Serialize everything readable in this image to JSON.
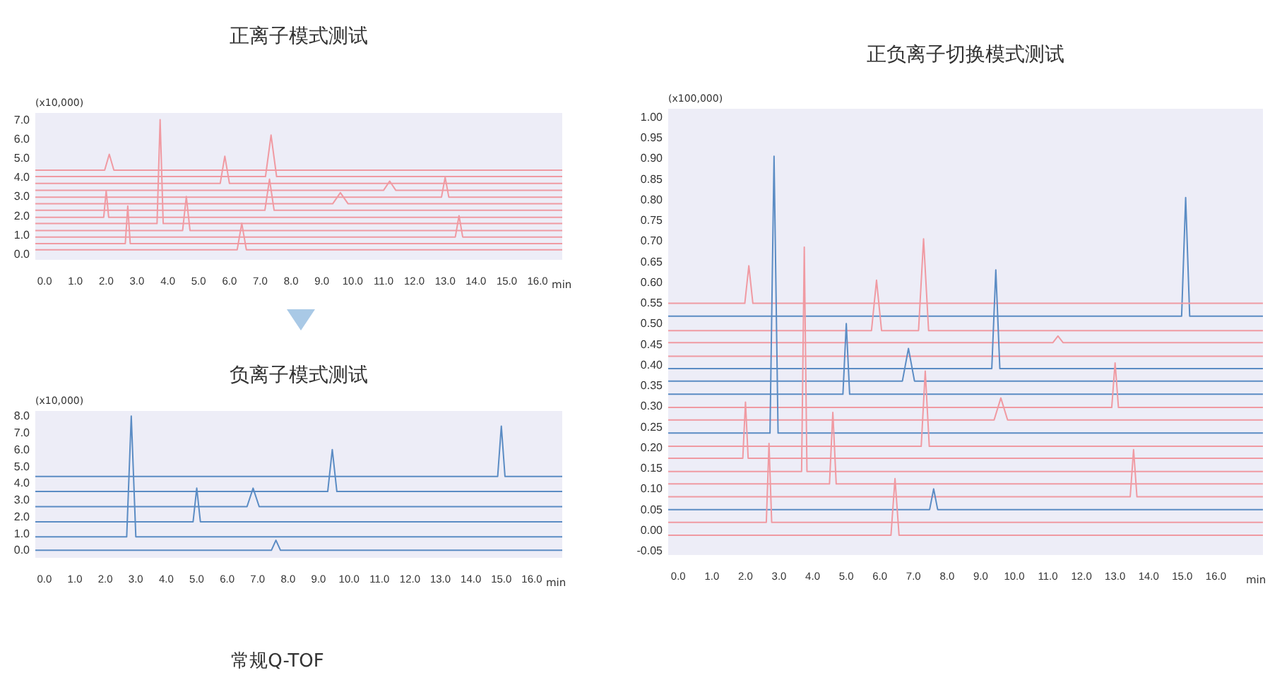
{
  "chart_data": [
    {
      "type": "line",
      "title": "正离子模式测试",
      "ylabel": "(x10,000)",
      "xlabel": "min",
      "xlim": [
        -0.3,
        16.8
      ],
      "ylim": [
        -0.3,
        7.35
      ],
      "xticks": [
        {
          "value": 0,
          "label": "0.0"
        },
        {
          "value": 1,
          "label": "1.0"
        },
        {
          "value": 2,
          "label": "2.0"
        },
        {
          "value": 3,
          "label": "3.0"
        },
        {
          "value": 4,
          "label": "4.0"
        },
        {
          "value": 5,
          "label": "5.0"
        },
        {
          "value": 6,
          "label": "6.0"
        },
        {
          "value": 7,
          "label": "7.0"
        },
        {
          "value": 8,
          "label": "8.0"
        },
        {
          "value": 9,
          "label": "9.0"
        },
        {
          "value": 10,
          "label": "10.0"
        },
        {
          "value": 11,
          "label": "11.0"
        },
        {
          "value": 12,
          "label": "12.0"
        },
        {
          "value": 13,
          "label": "13.0"
        },
        {
          "value": 14,
          "label": "14.0"
        },
        {
          "value": 15,
          "label": "15.0"
        },
        {
          "value": 16,
          "label": "16.0"
        }
      ],
      "yticks": [
        {
          "value": 0,
          "label": "0.0"
        },
        {
          "value": 1,
          "label": "1.0"
        },
        {
          "value": 2,
          "label": "2.0"
        },
        {
          "value": 3,
          "label": "3.0"
        },
        {
          "value": 4,
          "label": "4.0"
        },
        {
          "value": 5,
          "label": "5.0"
        },
        {
          "value": 6,
          "label": "6.0"
        },
        {
          "value": 7,
          "label": "7.0"
        }
      ],
      "series": [
        {
          "color": "#f09aa2",
          "x": [
            -0.3,
            1.95,
            2.1,
            2.25,
            16.8
          ],
          "values": [
            4.37,
            4.37,
            5.2,
            4.37,
            4.37
          ]
        },
        {
          "color": "#f09aa2",
          "x": [
            -0.3,
            7.17,
            7.35,
            7.53,
            16.8
          ],
          "values": [
            4.04,
            4.04,
            6.2,
            4.04,
            4.04
          ]
        },
        {
          "color": "#f09aa2",
          "x": [
            -0.3,
            5.7,
            5.85,
            6.0,
            16.8
          ],
          "values": [
            3.68,
            3.68,
            5.1,
            3.68,
            3.68
          ]
        },
        {
          "color": "#f09aa2",
          "x": [
            -0.3,
            11.0,
            11.2,
            11.4,
            16.8
          ],
          "values": [
            3.32,
            3.32,
            3.8,
            3.32,
            3.32
          ]
        },
        {
          "color": "#f09aa2",
          "x": [
            -0.3,
            12.88,
            13.0,
            13.12,
            16.8
          ],
          "values": [
            2.96,
            2.96,
            4.0,
            2.96,
            2.96
          ]
        },
        {
          "color": "#f09aa2",
          "x": [
            -0.3,
            9.35,
            9.6,
            9.85,
            16.8
          ],
          "values": [
            2.62,
            2.62,
            3.2,
            2.62,
            2.62
          ]
        },
        {
          "color": "#f09aa2",
          "x": [
            -0.3,
            7.15,
            7.3,
            7.45,
            16.8
          ],
          "values": [
            2.28,
            2.28,
            3.9,
            2.28,
            2.28
          ]
        },
        {
          "color": "#f09aa2",
          "x": [
            -0.3,
            1.92,
            2.0,
            2.08,
            16.8
          ],
          "values": [
            1.92,
            1.92,
            3.3,
            1.92,
            1.92
          ]
        },
        {
          "color": "#f09aa2",
          "x": [
            -0.3,
            3.65,
            3.75,
            3.85,
            16.8
          ],
          "values": [
            1.59,
            1.59,
            7.0,
            1.59,
            1.59
          ]
        },
        {
          "color": "#f09aa2",
          "x": [
            -0.3,
            4.48,
            4.6,
            4.72,
            16.8
          ],
          "values": [
            1.23,
            1.23,
            3.0,
            1.23,
            1.23
          ]
        },
        {
          "color": "#f09aa2",
          "x": [
            -0.3,
            13.33,
            13.45,
            13.57,
            16.8
          ],
          "values": [
            0.89,
            0.89,
            2.0,
            0.89,
            0.89
          ]
        },
        {
          "color": "#f09aa2",
          "x": [
            -0.3,
            2.62,
            2.7,
            2.78,
            16.8
          ],
          "values": [
            0.55,
            0.55,
            2.5,
            0.55,
            0.55
          ]
        },
        {
          "color": "#f09aa2",
          "x": [
            -0.3,
            6.25,
            6.4,
            6.55,
            16.8
          ],
          "values": [
            0.22,
            0.22,
            1.6,
            0.22,
            0.22
          ]
        }
      ]
    },
    {
      "type": "line",
      "title": "负离子模式测试",
      "ylabel": "(x10,000)",
      "xlabel": "min",
      "xlim": [
        -0.3,
        17.0
      ],
      "ylim": [
        -0.45,
        8.3
      ],
      "annotations": [
        "常规Q-TOF"
      ],
      "xticks": [
        {
          "value": 0,
          "label": "0.0"
        },
        {
          "value": 1,
          "label": "1.0"
        },
        {
          "value": 2,
          "label": "2.0"
        },
        {
          "value": 3,
          "label": "3.0"
        },
        {
          "value": 4,
          "label": "4.0"
        },
        {
          "value": 5,
          "label": "5.0"
        },
        {
          "value": 6,
          "label": "6.0"
        },
        {
          "value": 7,
          "label": "7.0"
        },
        {
          "value": 8,
          "label": "8.0"
        },
        {
          "value": 9,
          "label": "9.0"
        },
        {
          "value": 10,
          "label": "10.0"
        },
        {
          "value": 11,
          "label": "11.0"
        },
        {
          "value": 12,
          "label": "12.0"
        },
        {
          "value": 13,
          "label": "13.0"
        },
        {
          "value": 14,
          "label": "14.0"
        },
        {
          "value": 15,
          "label": "15.0"
        },
        {
          "value": 16,
          "label": "16.0"
        }
      ],
      "yticks": [
        {
          "value": 0,
          "label": "0.0"
        },
        {
          "value": 1,
          "label": "1.0"
        },
        {
          "value": 2,
          "label": "2.0"
        },
        {
          "value": 3,
          "label": "3.0"
        },
        {
          "value": 4,
          "label": "4.0"
        },
        {
          "value": 5,
          "label": "5.0"
        },
        {
          "value": 6,
          "label": "6.0"
        },
        {
          "value": 7,
          "label": "7.0"
        },
        {
          "value": 8,
          "label": "8.0"
        }
      ],
      "series": [
        {
          "color": "#5b8cc4",
          "x": [
            -0.3,
            14.88,
            15.0,
            15.12,
            17.0
          ],
          "values": [
            4.4,
            4.4,
            7.4,
            4.4,
            4.4
          ]
        },
        {
          "color": "#5b8cc4",
          "x": [
            -0.3,
            9.3,
            9.45,
            9.6,
            17.0
          ],
          "values": [
            3.5,
            3.5,
            6.0,
            3.5,
            3.5
          ]
        },
        {
          "color": "#5b8cc4",
          "x": [
            -0.3,
            6.65,
            6.85,
            7.05,
            17.0
          ],
          "values": [
            2.6,
            2.6,
            3.7,
            2.6,
            2.6
          ]
        },
        {
          "color": "#5b8cc4",
          "x": [
            -0.3,
            4.88,
            5.0,
            5.12,
            17.0
          ],
          "values": [
            1.7,
            1.7,
            3.7,
            1.7,
            1.7
          ]
        },
        {
          "color": "#5b8cc4",
          "x": [
            -0.3,
            2.7,
            2.85,
            3.0,
            17.0
          ],
          "values": [
            0.8,
            0.8,
            8.0,
            0.8,
            0.8
          ]
        },
        {
          "color": "#5b8cc4",
          "x": [
            -0.3,
            7.45,
            7.6,
            7.75,
            17.0
          ],
          "values": [
            0.0,
            0.0,
            0.6,
            0.0,
            0.0
          ]
        }
      ]
    },
    {
      "type": "line",
      "title": "正负离子切换模式测试",
      "ylabel": "(x100,000)",
      "xlabel": "min",
      "xlim": [
        -0.3,
        17.4
      ],
      "ylim": [
        -0.06,
        1.02
      ],
      "xticks": [
        {
          "value": 0,
          "label": "0.0"
        },
        {
          "value": 1,
          "label": "1.0"
        },
        {
          "value": 2,
          "label": "2.0"
        },
        {
          "value": 3,
          "label": "3.0"
        },
        {
          "value": 4,
          "label": "4.0"
        },
        {
          "value": 5,
          "label": "5.0"
        },
        {
          "value": 6,
          "label": "6.0"
        },
        {
          "value": 7,
          "label": "7.0"
        },
        {
          "value": 8,
          "label": "8.0"
        },
        {
          "value": 9,
          "label": "9.0"
        },
        {
          "value": 10,
          "label": "10.0"
        },
        {
          "value": 11,
          "label": "11.0"
        },
        {
          "value": 12,
          "label": "12.0"
        },
        {
          "value": 13,
          "label": "13.0"
        },
        {
          "value": 14,
          "label": "14.0"
        },
        {
          "value": 15,
          "label": "15.0"
        },
        {
          "value": 16,
          "label": "16.0"
        }
      ],
      "yticks": [
        {
          "value": -0.05,
          "label": "-0.05"
        },
        {
          "value": 0,
          "label": "0.00"
        },
        {
          "value": 0.05,
          "label": "0.05"
        },
        {
          "value": 0.1,
          "label": "0.10"
        },
        {
          "value": 0.15,
          "label": "0.15"
        },
        {
          "value": 0.2,
          "label": "0.20"
        },
        {
          "value": 0.25,
          "label": "0.25"
        },
        {
          "value": 0.3,
          "label": "0.30"
        },
        {
          "value": 0.35,
          "label": "0.35"
        },
        {
          "value": 0.4,
          "label": "0.40"
        },
        {
          "value": 0.45,
          "label": "0.45"
        },
        {
          "value": 0.5,
          "label": "0.50"
        },
        {
          "value": 0.55,
          "label": "0.55"
        },
        {
          "value": 0.6,
          "label": "0.60"
        },
        {
          "value": 0.65,
          "label": "0.65"
        },
        {
          "value": 0.7,
          "label": "0.70"
        },
        {
          "value": 0.75,
          "label": "0.75"
        },
        {
          "value": 0.8,
          "label": "0.80"
        },
        {
          "value": 0.85,
          "label": "0.85"
        },
        {
          "value": 0.9,
          "label": "0.90"
        },
        {
          "value": 0.95,
          "label": "0.95"
        },
        {
          "value": 1.0,
          "label": "1.00"
        }
      ],
      "series": [
        {
          "color": "#5b8cc4",
          "x": [
            -0.3,
            14.98,
            15.1,
            15.22,
            17.4
          ],
          "values": [
            0.518,
            0.518,
            0.805,
            0.518,
            0.518
          ]
        },
        {
          "color": "#f09aa2",
          "x": [
            -0.3,
            1.98,
            2.1,
            2.22,
            17.4
          ],
          "values": [
            0.549,
            0.549,
            0.64,
            0.549,
            0.549
          ]
        },
        {
          "color": "#f09aa2",
          "x": [
            -0.3,
            5.75,
            5.9,
            6.05,
            7.15,
            7.3,
            7.45,
            17.4
          ],
          "values": [
            0.483,
            0.483,
            0.605,
            0.483,
            0.483,
            0.705,
            0.483,
            0.483
          ]
        },
        {
          "color": "#f09aa2",
          "x": [
            -0.3,
            11.15,
            11.3,
            11.45,
            17.4
          ],
          "values": [
            0.454,
            0.454,
            0.47,
            0.454,
            0.454
          ]
        },
        {
          "color": "#f09aa2",
          "x": [
            -0.3,
            17.4
          ],
          "values": [
            0.421,
            0.421
          ]
        },
        {
          "color": "#5b8cc4",
          "x": [
            -0.3,
            9.33,
            9.45,
            9.57,
            17.4
          ],
          "values": [
            0.391,
            0.391,
            0.63,
            0.391,
            0.391
          ]
        },
        {
          "color": "#5b8cc4",
          "x": [
            -0.3,
            6.67,
            6.85,
            7.03,
            17.4
          ],
          "values": [
            0.361,
            0.361,
            0.44,
            0.361,
            0.361
          ]
        },
        {
          "color": "#5b8cc4",
          "x": [
            -0.3,
            4.9,
            5.0,
            5.1,
            17.4
          ],
          "values": [
            0.329,
            0.329,
            0.5,
            0.329,
            0.329
          ]
        },
        {
          "color": "#f09aa2",
          "x": [
            -0.3,
            12.9,
            13.0,
            13.1,
            17.4
          ],
          "values": [
            0.297,
            0.297,
            0.405,
            0.297,
            0.297
          ]
        },
        {
          "color": "#f09aa2",
          "x": [
            -0.3,
            9.4,
            9.6,
            9.8,
            17.4
          ],
          "values": [
            0.267,
            0.267,
            0.32,
            0.267,
            0.267
          ]
        },
        {
          "color": "#5b8cc4",
          "x": [
            -0.3,
            2.73,
            2.85,
            2.97,
            17.4
          ],
          "values": [
            0.235,
            0.235,
            0.905,
            0.235,
            0.235
          ]
        },
        {
          "color": "#f09aa2",
          "x": [
            -0.3,
            7.23,
            7.35,
            7.47,
            17.4
          ],
          "values": [
            0.203,
            0.203,
            0.385,
            0.203,
            0.203
          ]
        },
        {
          "color": "#f09aa2",
          "x": [
            -0.3,
            1.92,
            2.0,
            2.08,
            17.4
          ],
          "values": [
            0.174,
            0.174,
            0.31,
            0.174,
            0.174
          ]
        },
        {
          "color": "#f09aa2",
          "x": [
            -0.3,
            3.67,
            3.75,
            3.83,
            17.4
          ],
          "values": [
            0.142,
            0.142,
            0.685,
            0.142,
            0.142
          ]
        },
        {
          "color": "#f09aa2",
          "x": [
            -0.3,
            4.5,
            4.6,
            4.7,
            17.4
          ],
          "values": [
            0.112,
            0.112,
            0.285,
            0.112,
            0.112
          ]
        },
        {
          "color": "#f09aa2",
          "x": [
            -0.3,
            13.45,
            13.55,
            13.65,
            17.4
          ],
          "values": [
            0.081,
            0.081,
            0.195,
            0.081,
            0.081
          ]
        },
        {
          "color": "#5b8cc4",
          "x": [
            -0.3,
            7.48,
            7.6,
            7.72,
            17.4
          ],
          "values": [
            0.05,
            0.05,
            0.1,
            0.05,
            0.05
          ]
        },
        {
          "color": "#f09aa2",
          "x": [
            -0.3,
            2.62,
            2.7,
            2.78,
            17.4
          ],
          "values": [
            0.019,
            0.019,
            0.21,
            0.019,
            0.019
          ]
        },
        {
          "color": "#f09aa2",
          "x": [
            -0.3,
            6.33,
            6.45,
            6.57,
            17.4
          ],
          "values": [
            -0.012,
            -0.012,
            0.125,
            -0.012,
            -0.012
          ]
        }
      ]
    }
  ]
}
